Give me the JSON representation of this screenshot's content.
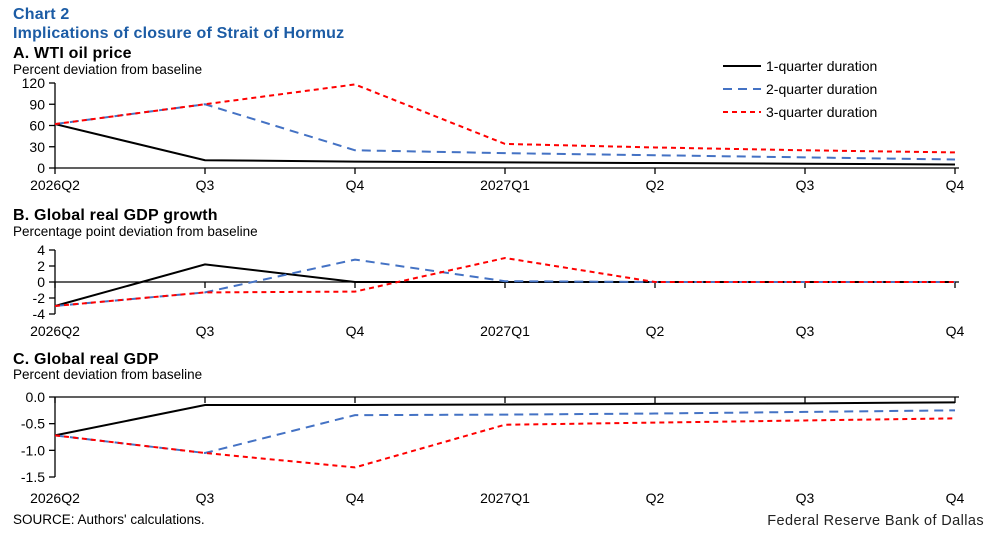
{
  "title": {
    "line1": "Chart 2",
    "line2": "Implications of closure of Strait of Hormuz"
  },
  "colors": {
    "title_blue": "#1C5CA5",
    "axis_black": "#000000",
    "series_1q": "#000000",
    "series_2q": "#4472C4",
    "series_3q": "#FF0000"
  },
  "legend": [
    {
      "label": "1-quarter duration",
      "color": "#000000",
      "dash": ""
    },
    {
      "label": "2-quarter duration",
      "color": "#4472C4",
      "dash": "9 6"
    },
    {
      "label": "3-quarter duration",
      "color": "#FF0000",
      "dash": "5 4"
    }
  ],
  "chart_data": [
    {
      "type": "line",
      "title": "A. WTI oil price",
      "ylabel": "Percent deviation from baseline",
      "categories": [
        "2026Q2",
        "Q3",
        "Q4",
        "2027Q1",
        "Q2",
        "Q3",
        "Q4"
      ],
      "ylim": [
        0,
        120
      ],
      "yticks": [
        {
          "v": 0,
          "label": "0"
        },
        {
          "v": 30,
          "label": "30"
        },
        {
          "v": 60,
          "label": "60"
        },
        {
          "v": 90,
          "label": "90"
        },
        {
          "v": 120,
          "label": "120"
        }
      ],
      "grid": false,
      "legend_position": "top-right",
      "series": [
        {
          "name": "1-quarter duration",
          "values": [
            62,
            11,
            9,
            8,
            7,
            6,
            5
          ]
        },
        {
          "name": "2-quarter duration",
          "values": [
            62,
            90,
            25,
            21,
            18,
            15,
            12
          ]
        },
        {
          "name": "3-quarter duration",
          "values": [
            62,
            90,
            118,
            34,
            29,
            25,
            22
          ]
        }
      ]
    },
    {
      "type": "line",
      "title": "B. Global real GDP growth",
      "ylabel": "Percentage point deviation from baseline",
      "categories": [
        "2026Q2",
        "Q3",
        "Q4",
        "2027Q1",
        "Q2",
        "Q3",
        "Q4"
      ],
      "ylim": [
        -4,
        4
      ],
      "yticks": [
        {
          "v": -4,
          "label": "-4"
        },
        {
          "v": -2,
          "label": "-2"
        },
        {
          "v": 0,
          "label": "0"
        },
        {
          "v": 2,
          "label": "2"
        },
        {
          "v": 4,
          "label": "4"
        }
      ],
      "grid": false,
      "series": [
        {
          "name": "1-quarter duration",
          "values": [
            -3.0,
            2.2,
            0,
            0,
            0,
            0,
            0
          ]
        },
        {
          "name": "2-quarter duration",
          "values": [
            -3.0,
            -1.3,
            2.8,
            0.1,
            0,
            0,
            0
          ]
        },
        {
          "name": "3-quarter duration",
          "values": [
            -3.0,
            -1.3,
            -1.2,
            3.0,
            0,
            0,
            0
          ]
        }
      ]
    },
    {
      "type": "line",
      "title": "C. Global real GDP",
      "ylabel": "Percent deviation from baseline",
      "categories": [
        "2026Q2",
        "Q3",
        "Q4",
        "2027Q1",
        "Q2",
        "Q3",
        "Q4"
      ],
      "ylim": [
        -1.5,
        0
      ],
      "yticks": [
        {
          "v": -1.5,
          "label": "-1.5"
        },
        {
          "v": -1.0,
          "label": "-1.0"
        },
        {
          "v": -0.5,
          "label": "-0.5"
        },
        {
          "v": 0,
          "label": "0.0"
        }
      ],
      "grid": false,
      "series": [
        {
          "name": "1-quarter duration",
          "values": [
            -0.72,
            -0.15,
            -0.15,
            -0.14,
            -0.13,
            -0.12,
            -0.1
          ]
        },
        {
          "name": "2-quarter duration",
          "values": [
            -0.72,
            -1.05,
            -0.34,
            -0.33,
            -0.31,
            -0.28,
            -0.25
          ]
        },
        {
          "name": "3-quarter duration",
          "values": [
            -0.72,
            -1.05,
            -1.32,
            -0.52,
            -0.48,
            -0.44,
            -0.4
          ]
        }
      ]
    }
  ],
  "footer": {
    "source": "SOURCE: Authors' calculations.",
    "branding": "Federal Reserve Bank of Dallas"
  }
}
